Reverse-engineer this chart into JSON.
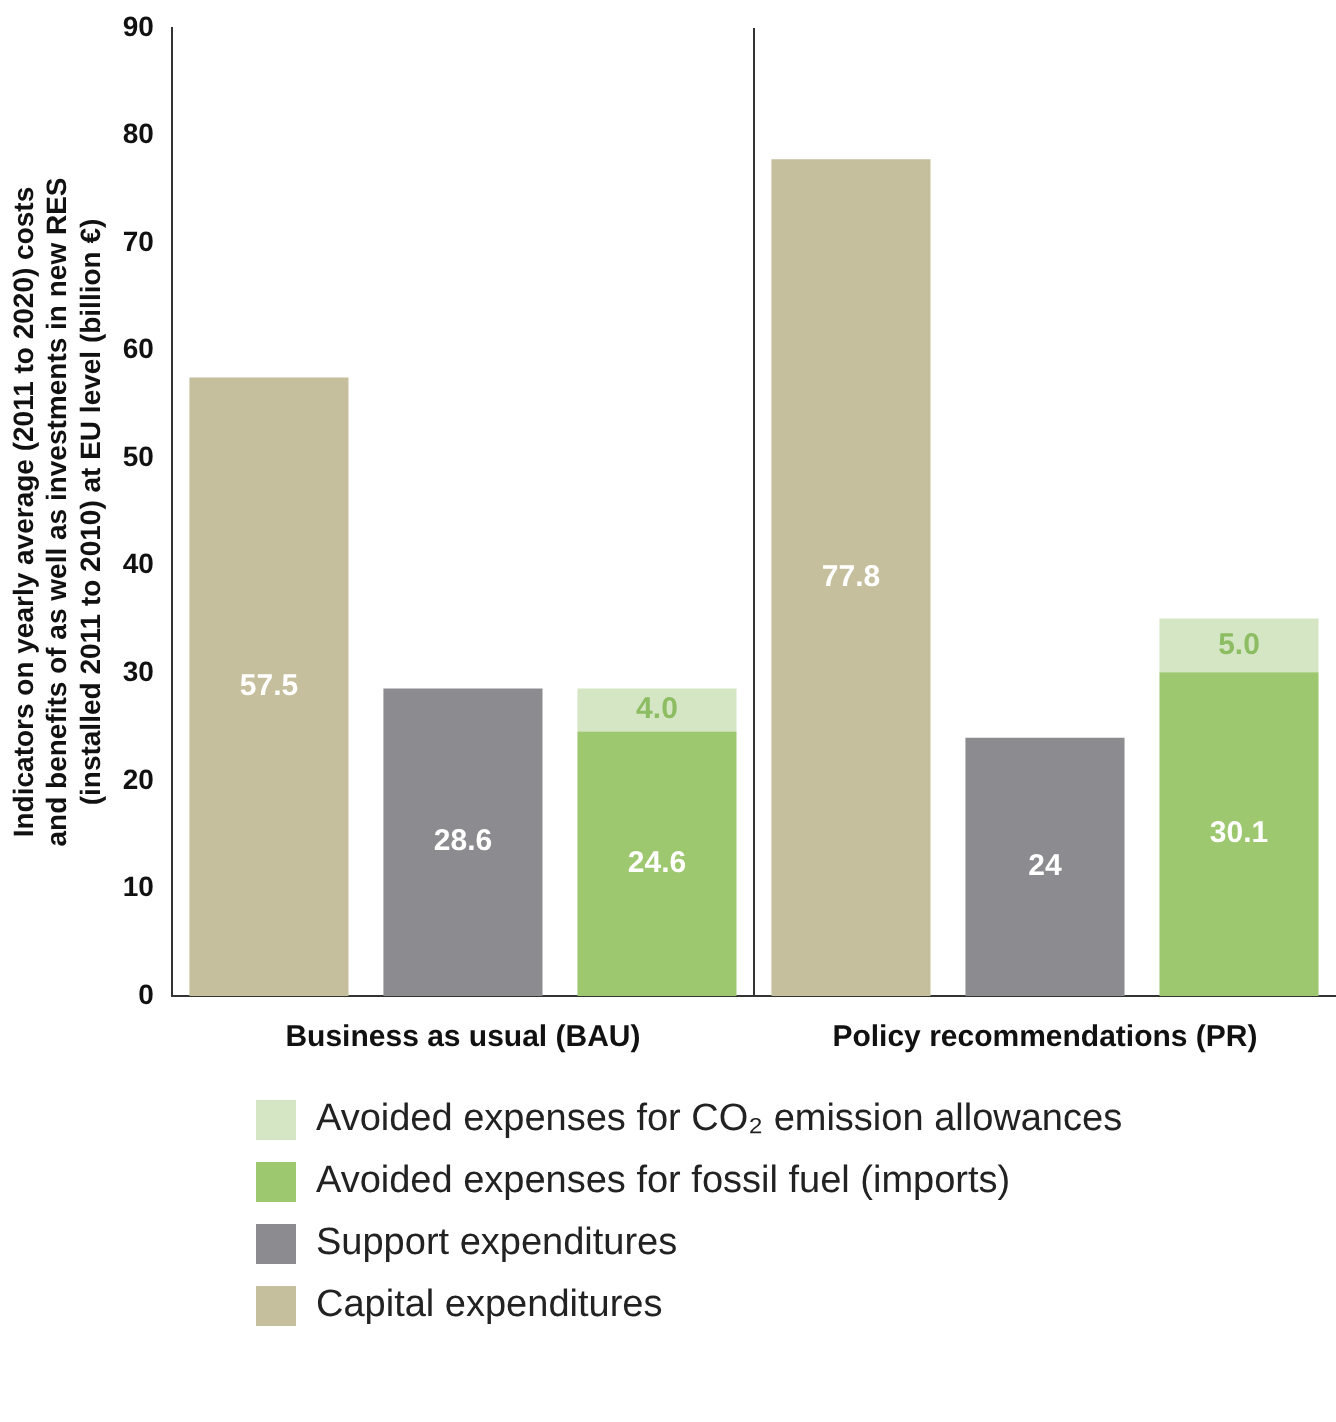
{
  "chart_data": {
    "type": "bar",
    "ylabel": "Indicators on yearly average (2011 to 2020) costs and benefits of as well as investments in new RES (installed 2011 to 2010) at EU level (billion €)",
    "categories": [
      null,
      "Business as usual (BAU)",
      null,
      null,
      "Policy recommendations (PR)",
      null
    ],
    "series": [
      {
        "name": "Capital expenditures",
        "color": "#c5bf9d",
        "values": [
          57.5,
          null,
          null,
          77.8,
          null,
          null
        ]
      },
      {
        "name": "Support expenditures",
        "color": "#8b8b90",
        "values": [
          null,
          28.6,
          null,
          null,
          24,
          null
        ]
      },
      {
        "name": "Avoided expenses for fossil fuel (imports)",
        "color": "#9dc870",
        "values": [
          null,
          null,
          24.6,
          null,
          null,
          30.1
        ]
      },
      {
        "name": "Avoided expenses for CO₂ emission allowances",
        "color": "#d5e6c4",
        "values": [
          null,
          null,
          4.0,
          null,
          null,
          5.0
        ],
        "value_labels": [
          null,
          null,
          "4.0",
          null,
          null,
          "5.0"
        ]
      }
    ],
    "stacked": true,
    "data_labels": true,
    "ylim": [
      0,
      90
    ],
    "yticks": [
      0,
      10,
      20,
      30,
      40,
      50,
      60,
      70,
      80,
      90
    ],
    "grid": "x",
    "legend": "bottom"
  }
}
